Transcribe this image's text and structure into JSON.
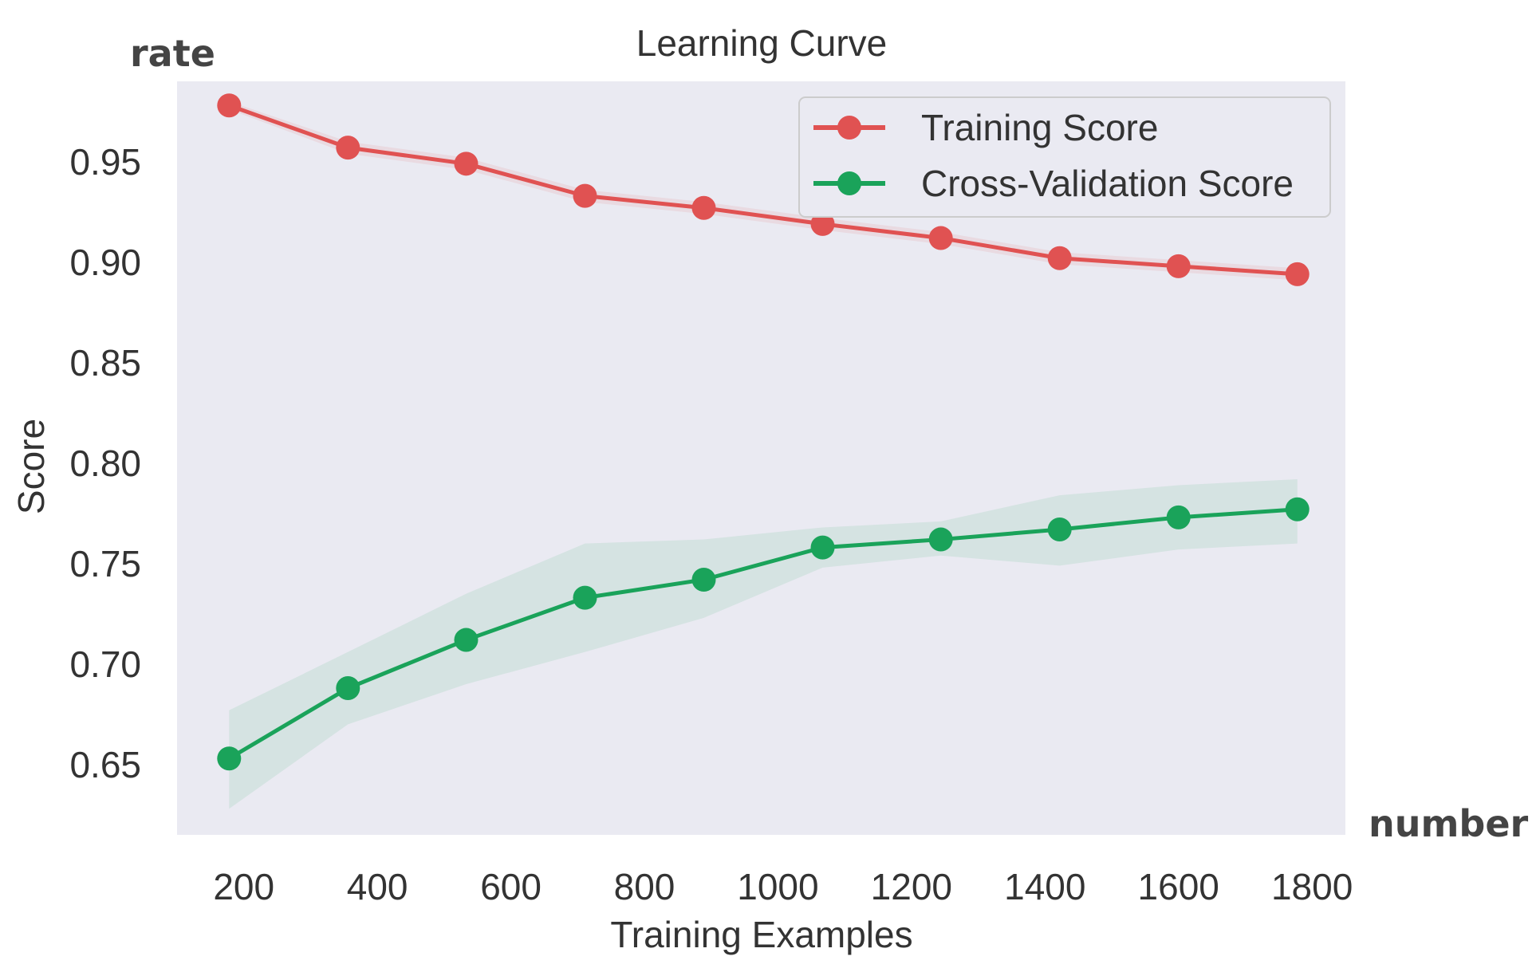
{
  "chart_data": {
    "type": "line",
    "title": "Learning Curve",
    "xlabel": "Training Examples",
    "ylabel": "Score",
    "corner_labels": {
      "top_left": "rate",
      "bottom_right": "number"
    },
    "x": [
      178,
      356,
      533,
      711,
      889,
      1067,
      1244,
      1422,
      1600,
      1778
    ],
    "xlim": [
      100,
      1850
    ],
    "ylim": [
      0.615,
      0.99
    ],
    "xticks": [
      200,
      400,
      600,
      800,
      1000,
      1200,
      1400,
      1600,
      1800
    ],
    "yticks": [
      0.65,
      0.7,
      0.75,
      0.8,
      0.85,
      0.9,
      0.95
    ],
    "ytick_labels": [
      "0.65",
      "0.70",
      "0.75",
      "0.80",
      "0.85",
      "0.90",
      "0.95"
    ],
    "grid": false,
    "legend_position": "top-right",
    "series": [
      {
        "name": "Training Score",
        "color": "#e05252",
        "values": [
          0.978,
          0.957,
          0.949,
          0.933,
          0.927,
          0.919,
          0.912,
          0.902,
          0.898,
          0.894
        ],
        "band_upper": [
          0.98,
          0.96,
          0.952,
          0.936,
          0.93,
          0.922,
          0.915,
          0.905,
          0.901,
          0.897
        ],
        "band_lower": [
          0.976,
          0.954,
          0.946,
          0.93,
          0.924,
          0.916,
          0.909,
          0.899,
          0.895,
          0.891
        ]
      },
      {
        "name": "Cross-Validation Score",
        "color": "#1aa35a",
        "values": [
          0.653,
          0.688,
          0.712,
          0.733,
          0.742,
          0.758,
          0.762,
          0.767,
          0.773,
          0.777
        ],
        "band_upper": [
          0.677,
          0.706,
          0.735,
          0.76,
          0.762,
          0.768,
          0.771,
          0.784,
          0.789,
          0.792
        ],
        "band_lower": [
          0.628,
          0.67,
          0.69,
          0.706,
          0.723,
          0.748,
          0.754,
          0.749,
          0.757,
          0.76
        ]
      }
    ]
  }
}
